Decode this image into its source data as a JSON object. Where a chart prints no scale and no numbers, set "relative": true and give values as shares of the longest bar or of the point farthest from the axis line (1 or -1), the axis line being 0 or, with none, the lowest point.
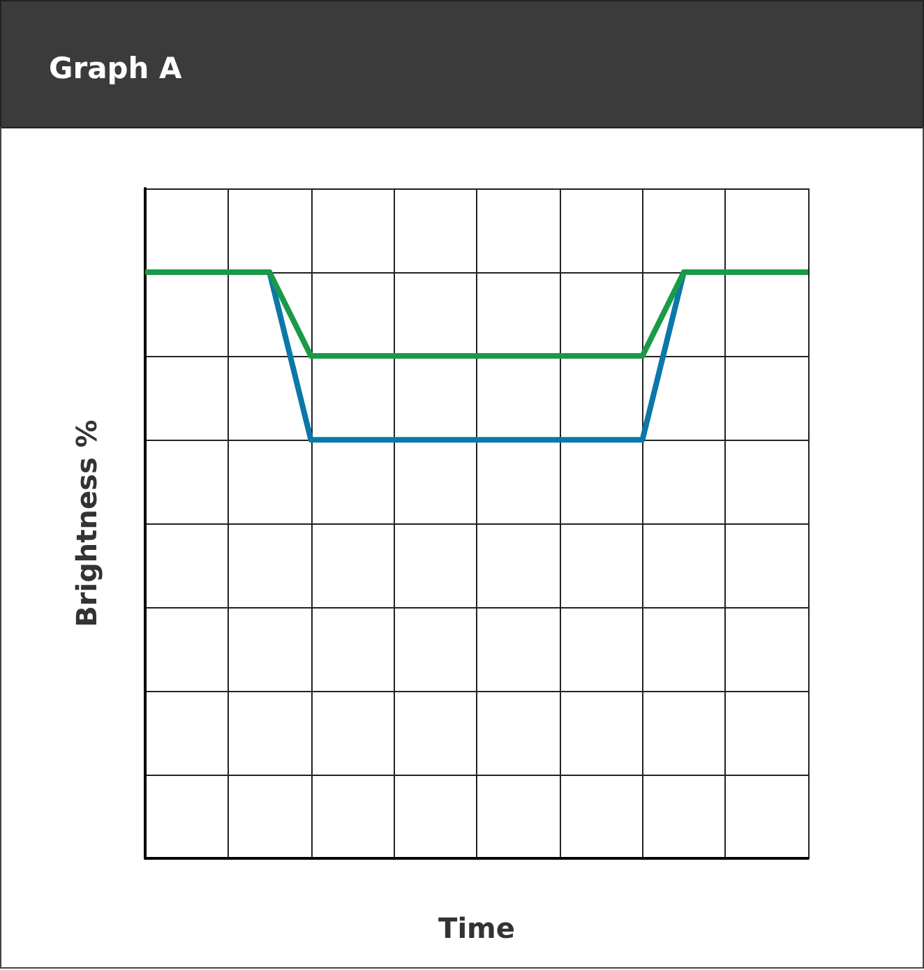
{
  "chart_data": {
    "type": "line",
    "title": "Graph A",
    "xlabel": "Time",
    "ylabel": "Brightness %",
    "relative": true,
    "grid": true,
    "marker": "none",
    "line_style": "solid",
    "categories": [
      null,
      null,
      null,
      null,
      null,
      null,
      null,
      null,
      null,
      null,
      null,
      null,
      null,
      null,
      null,
      null,
      null
    ],
    "series": [
      {
        "color": "#0a78a8",
        "values": [
          null,
          null,
          1,
          1,
          0.714,
          0.714,
          0.714,
          0.714,
          0.714,
          0.714,
          0.714,
          0.714,
          0.714,
          1,
          1,
          null,
          null
        ]
      },
      {
        "color": "#1a9a48",
        "values": [
          1,
          1,
          1,
          1,
          0.857,
          0.857,
          0.857,
          0.857,
          0.857,
          0.857,
          0.857,
          0.857,
          0.857,
          1,
          1,
          1,
          1
        ]
      }
    ]
  }
}
